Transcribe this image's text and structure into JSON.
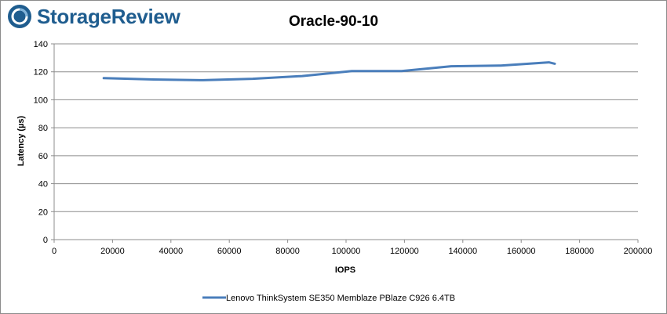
{
  "brand": {
    "name": "StorageReview",
    "icon": "storagereview-logo-icon",
    "color": "#1f5d8f"
  },
  "chart_data": {
    "type": "line",
    "title": "Oracle-90-10",
    "xlabel": "IOPS",
    "ylabel": "Latency (µs)",
    "xlim": [
      0,
      200000
    ],
    "ylim": [
      0,
      140
    ],
    "xticks": [
      0,
      20000,
      40000,
      60000,
      80000,
      100000,
      120000,
      140000,
      160000,
      180000,
      200000
    ],
    "yticks": [
      0,
      20,
      40,
      60,
      80,
      100,
      120,
      140
    ],
    "grid": true,
    "legend_position": "bottom",
    "series": [
      {
        "name": "Lenovo ThinkSystem SE350 Memblaze PBlaze C926 6.4TB",
        "color": "#4a7ebb",
        "x": [
          17000,
          34000,
          51000,
          68000,
          85000,
          102000,
          119000,
          136000,
          153000,
          169500,
          171500
        ],
        "y": [
          115.5,
          114.5,
          114.0,
          115.0,
          117.0,
          120.5,
          120.5,
          124.0,
          124.5,
          126.8,
          125.8
        ]
      }
    ]
  }
}
